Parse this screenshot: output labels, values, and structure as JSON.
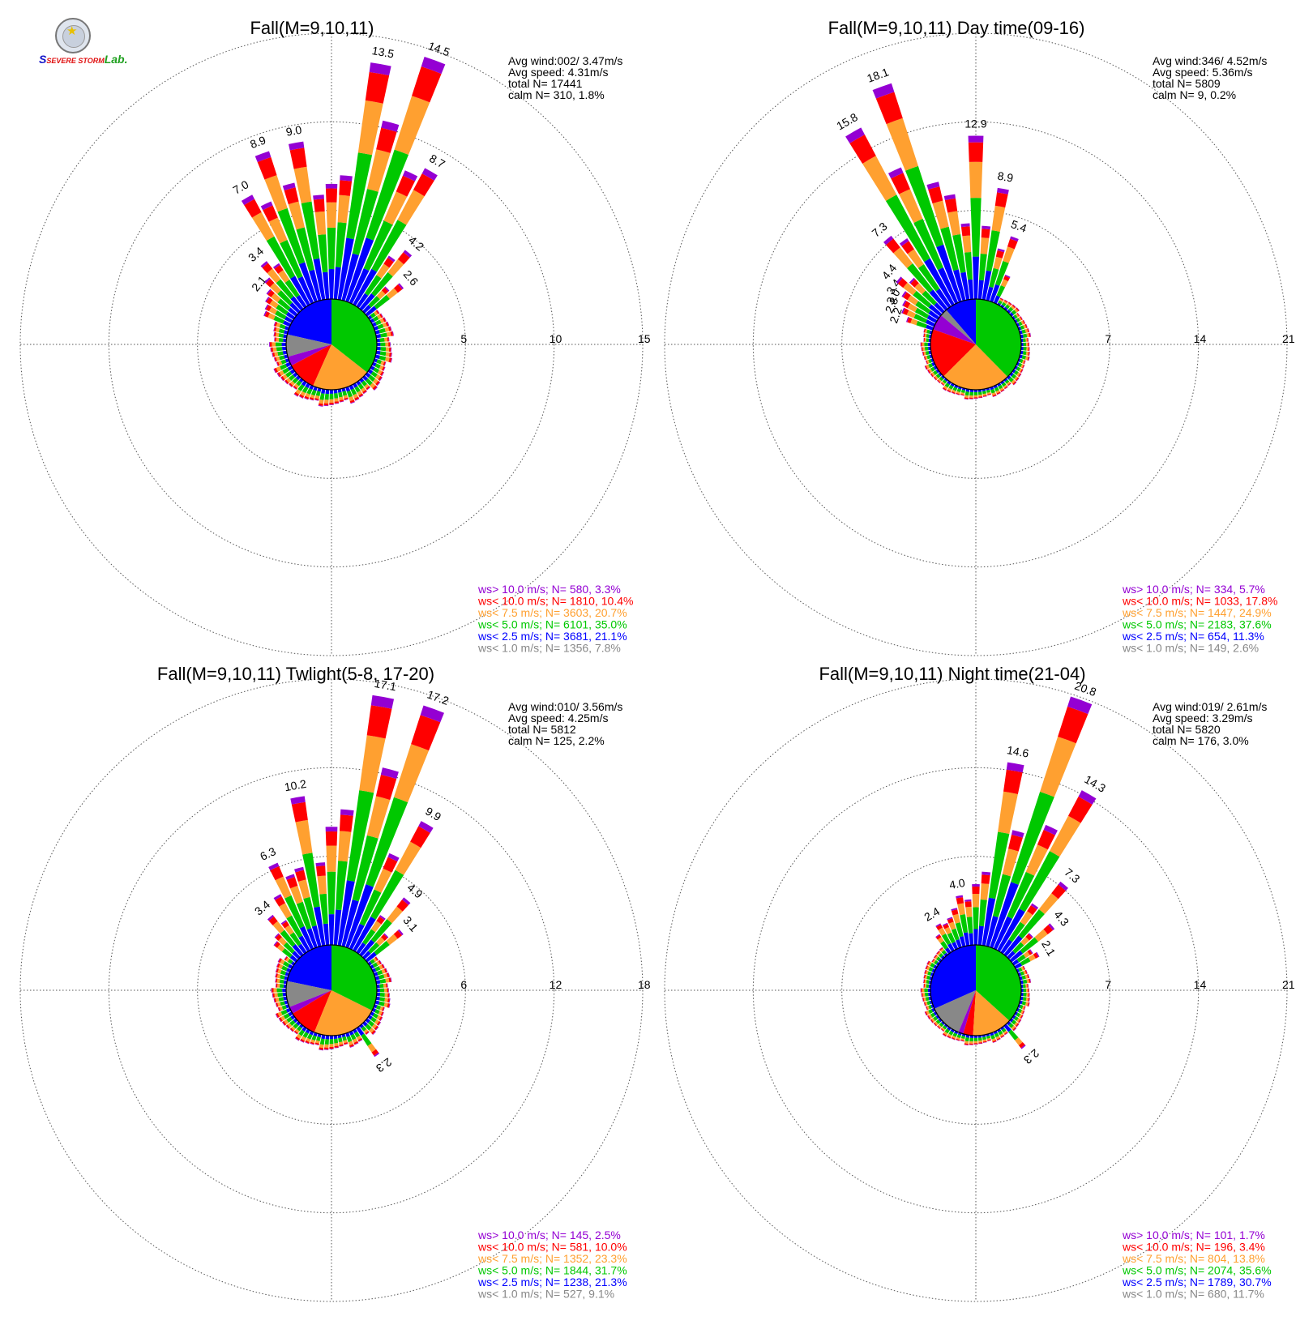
{
  "logo": {
    "text_part1": "S",
    "text_part2": "SEVERE STORM",
    "text_part3": "Lab."
  },
  "colors": {
    "purple": "#9400d3",
    "red": "#ff0000",
    "orange": "#ffa030",
    "green": "#00c800",
    "blue": "#0000ff",
    "gray": "#888888"
  },
  "chart_data": [
    {
      "type": "wind-rose",
      "title": "Fall(M=9,10,11)",
      "stats": {
        "avg_wind": "Avg wind:002/ 3.47m/s",
        "avg_speed": "Avg speed: 4.31m/s",
        "total": "total N=      17441",
        "calm": "calm N=    310,   1.8%"
      },
      "ring_labels": [
        "5",
        "10",
        "15"
      ],
      "rmax": 15,
      "legend": [
        "ws> 10.0 m/s; N=    580,   3.3%",
        "ws< 10.0 m/s; N=  1810,  10.4%",
        "ws<  7.5 m/s; N=  3603,  20.7%",
        "ws<  5.0 m/s; N=  6101,  35.0%",
        "ws<  2.5 m/s; N=  3681,  21.1%",
        "ws<  1.0 m/s; N=  1356,   7.8%"
      ],
      "pie": [
        21.1,
        7.8,
        3.3,
        10.4,
        20.7,
        35.0
      ],
      "petals": [
        {
          "dir": -65,
          "total": 1.6
        },
        {
          "dir": -60,
          "total": 1.7
        },
        {
          "dir": -55,
          "total": 1.9
        },
        {
          "dir": -50,
          "total": 2.1,
          "label": "2.1"
        },
        {
          "dir": -45,
          "total": 2.6
        },
        {
          "dir": -40,
          "total": 3.4,
          "label": "3.4"
        },
        {
          "dir": -35,
          "total": 2.9
        },
        {
          "dir": -30,
          "total": 7.0,
          "label": "7.0"
        },
        {
          "dir": -25,
          "total": 6.2
        },
        {
          "dir": -20,
          "total": 8.9,
          "label": "8.9"
        },
        {
          "dir": -15,
          "total": 6.8
        },
        {
          "dir": -10,
          "total": 9.0,
          "label": "9.0"
        },
        {
          "dir": -5,
          "total": 5.9
        },
        {
          "dir": 0,
          "total": 6.5
        },
        {
          "dir": 5,
          "total": 7.0
        },
        {
          "dir": 10,
          "total": 13.5,
          "label": "13.5"
        },
        {
          "dir": 15,
          "total": 10.4
        },
        {
          "dir": 20,
          "total": 14.5,
          "label": "14.5"
        },
        {
          "dir": 25,
          "total": 8.1
        },
        {
          "dir": 30,
          "total": 8.7,
          "label": "8.7"
        },
        {
          "dir": 35,
          "total": 3.4
        },
        {
          "dir": 40,
          "total": 4.2,
          "label": "4.2"
        },
        {
          "dir": 45,
          "total": 1.9
        },
        {
          "dir": 50,
          "total": 2.6,
          "label": "2.6"
        }
      ],
      "ring_petals": {
        "from": 55,
        "to": 300,
        "step": 5,
        "total": 0.85
      }
    },
    {
      "type": "wind-rose",
      "title": "Fall(M=9,10,11) Day time(09-16)",
      "stats": {
        "avg_wind": "Avg wind:346/ 4.52m/s",
        "avg_speed": "Avg speed: 5.36m/s",
        "total": "total N=       5809",
        "calm": "calm N=      9,   0.2%"
      },
      "ring_labels": [
        "7",
        "14",
        "21"
      ],
      "rmax": 21,
      "legend": [
        "ws> 10.0 m/s; N=    334,   5.7%",
        "ws< 10.0 m/s; N=  1033,  17.8%",
        "ws<  7.5 m/s; N=  1447,  24.9%",
        "ws<  5.0 m/s; N=  2183,  37.6%",
        "ws<  2.5 m/s; N=    654,  11.3%",
        "ws<  1.0 m/s; N=    149,   2.6%"
      ],
      "pie": [
        11.3,
        2.6,
        5.7,
        17.8,
        24.9,
        37.6
      ],
      "petals": [
        {
          "dir": -70,
          "total": 2.2,
          "label": "2.2"
        },
        {
          "dir": -65,
          "total": 2.8,
          "label": "2.8"
        },
        {
          "dir": -60,
          "total": 3.0,
          "label": "3.0"
        },
        {
          "dir": -55,
          "total": 3.4,
          "label": "3.4"
        },
        {
          "dir": -50,
          "total": 4.4,
          "label": "4.4"
        },
        {
          "dir": -45,
          "total": 3.6
        },
        {
          "dir": -40,
          "total": 7.3,
          "label": "7.3"
        },
        {
          "dir": -35,
          "total": 6.4
        },
        {
          "dir": -30,
          "total": 15.8,
          "label": "15.8"
        },
        {
          "dir": -25,
          "total": 11.6
        },
        {
          "dir": -20,
          "total": 18.1,
          "label": "18.1"
        },
        {
          "dir": -15,
          "total": 9.6
        },
        {
          "dir": -10,
          "total": 8.4
        },
        {
          "dir": -5,
          "total": 6.0
        },
        {
          "dir": 0,
          "total": 12.9,
          "label": "12.9"
        },
        {
          "dir": 5,
          "total": 5.8
        },
        {
          "dir": 10,
          "total": 8.9,
          "label": "8.9"
        },
        {
          "dir": 15,
          "total": 4.2
        },
        {
          "dir": 20,
          "total": 5.4,
          "label": "5.4"
        },
        {
          "dir": 25,
          "total": 2.4
        }
      ],
      "ring_petals": {
        "from": 30,
        "to": 285,
        "step": 5,
        "total": 0.7
      }
    },
    {
      "type": "wind-rose",
      "title": "Fall(M=9,10,11) Twlight(5-8, 17-20)",
      "stats": {
        "avg_wind": "Avg wind:010/ 3.56m/s",
        "avg_speed": "Avg speed: 4.25m/s",
        "total": "total N=       5812",
        "calm": "calm N=    125,   2.2%"
      },
      "ring_labels": [
        "6",
        "12",
        "18"
      ],
      "rmax": 18,
      "legend": [
        "ws> 10.0 m/s; N=    145,   2.5%",
        "ws< 10.0 m/s; N=    581,  10.0%",
        "ws<  7.5 m/s; N=  1352,  23.3%",
        "ws<  5.0 m/s; N=  1844,  31.7%",
        "ws<  2.5 m/s; N=  1238,  21.3%",
        "ws<  1.0 m/s; N=    527,   9.1%"
      ],
      "pie": [
        21.3,
        9.1,
        2.5,
        10.0,
        23.3,
        31.7
      ],
      "petals": [
        {
          "dir": -50,
          "total": 1.9
        },
        {
          "dir": -45,
          "total": 2.2
        },
        {
          "dir": -40,
          "total": 3.4,
          "label": "3.4"
        },
        {
          "dir": -35,
          "total": 2.6
        },
        {
          "dir": -30,
          "total": 4.3
        },
        {
          "dir": -25,
          "total": 6.3,
          "label": "6.3"
        },
        {
          "dir": -20,
          "total": 5.2
        },
        {
          "dir": -15,
          "total": 5.5
        },
        {
          "dir": -10,
          "total": 10.2,
          "label": "10.2"
        },
        {
          "dir": -5,
          "total": 5.6
        },
        {
          "dir": 0,
          "total": 8.0
        },
        {
          "dir": 5,
          "total": 9.2
        },
        {
          "dir": 10,
          "total": 17.1,
          "label": "17.1"
        },
        {
          "dir": 15,
          "total": 12.4
        },
        {
          "dir": 20,
          "total": 17.2,
          "label": "17.2"
        },
        {
          "dir": 25,
          "total": 7.0
        },
        {
          "dir": 30,
          "total": 9.9,
          "label": "9.9"
        },
        {
          "dir": 35,
          "total": 3.0
        },
        {
          "dir": 40,
          "total": 4.9,
          "label": "4.9"
        },
        {
          "dir": 45,
          "total": 2.2
        },
        {
          "dir": 50,
          "total": 3.1,
          "label": "3.1"
        },
        {
          "dir": 145,
          "total": 2.3,
          "label": "2.3"
        }
      ],
      "ring_petals": {
        "from": 55,
        "to": 310,
        "step": 5,
        "total": 0.9
      }
    },
    {
      "type": "wind-rose",
      "title": "Fall(M=9,10,11) Night time(21-04)",
      "stats": {
        "avg_wind": "Avg wind:019/ 2.61m/s",
        "avg_speed": "Avg speed: 3.29m/s",
        "total": "total N=       5820",
        "calm": "calm N=    176,   3.0%"
      },
      "ring_labels": [
        "7",
        "14",
        "21"
      ],
      "rmax": 21,
      "legend": [
        "ws> 10.0 m/s; N=    101,   1.7%",
        "ws< 10.0 m/s; N=    196,   3.4%",
        "ws<  7.5 m/s; N=    804,  13.8%",
        "ws<  5.0 m/s; N=  2074,  35.6%",
        "ws<  2.5 m/s; N=  1789,  30.7%",
        "ws<  1.0 m/s; N=    680,  11.7%"
      ],
      "pie": [
        30.7,
        11.7,
        1.7,
        3.4,
        13.8,
        35.6
      ],
      "petals": [
        {
          "dir": -35,
          "total": 1.7
        },
        {
          "dir": -30,
          "total": 2.4,
          "label": "2.4"
        },
        {
          "dir": -25,
          "total": 2.2
        },
        {
          "dir": -20,
          "total": 2.5
        },
        {
          "dir": -15,
          "total": 3.1
        },
        {
          "dir": -10,
          "total": 4.0,
          "label": "4.0"
        },
        {
          "dir": -5,
          "total": 3.6
        },
        {
          "dir": 0,
          "total": 4.8
        },
        {
          "dir": 5,
          "total": 5.8
        },
        {
          "dir": 10,
          "total": 14.6,
          "label": "14.6"
        },
        {
          "dir": 15,
          "total": 9.4
        },
        {
          "dir": 20,
          "total": 20.8,
          "label": "20.8"
        },
        {
          "dir": 25,
          "total": 10.6
        },
        {
          "dir": 30,
          "total": 14.3,
          "label": "14.3"
        },
        {
          "dir": 35,
          "total": 4.6
        },
        {
          "dir": 40,
          "total": 7.3,
          "label": "7.3"
        },
        {
          "dir": 45,
          "total": 2.6
        },
        {
          "dir": 50,
          "total": 4.3,
          "label": "4.3"
        },
        {
          "dir": 55,
          "total": 1.8
        },
        {
          "dir": 60,
          "total": 2.1,
          "label": "2.1"
        },
        {
          "dir": 140,
          "total": 2.3,
          "label": "2.3"
        }
      ],
      "ring_petals": {
        "from": 65,
        "to": 330,
        "step": 5,
        "total": 0.7
      }
    }
  ]
}
